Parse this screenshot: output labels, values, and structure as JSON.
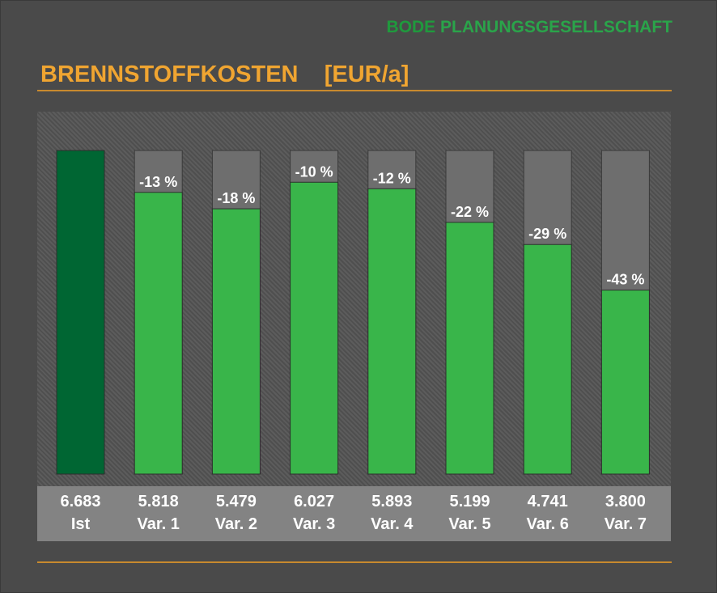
{
  "brand": {
    "part1": "BODE",
    "part2": "PLANUNGSGESELLSCHAFT"
  },
  "title": "BRENNSTOFFKOSTEN    [EUR/a]",
  "colors": {
    "background": "#4a4a4a",
    "baseline_bar": "#006633",
    "variant_bar": "#39b54a",
    "reference_bar": "#6e6e6e",
    "title": "#f0a531",
    "rule": "#c88a2e",
    "label_band": "#838383"
  },
  "chart_data": {
    "type": "bar",
    "title": "BRENNSTOFFKOSTEN    [EUR/a]",
    "categories": [
      "Ist",
      "Var. 1",
      "Var. 2",
      "Var. 3",
      "Var. 4",
      "Var. 5",
      "Var. 6",
      "Var. 7"
    ],
    "value_labels": [
      "6.683",
      "5.818",
      "5.479",
      "6.027",
      "5.893",
      "5.199",
      "4.741",
      "3.800"
    ],
    "values": [
      6683,
      5818,
      5479,
      6027,
      5893,
      5199,
      4741,
      3800
    ],
    "reference_value": 6683,
    "change_labels": [
      "",
      "-13 %",
      "-18 %",
      "-10 %",
      "-12 %",
      "-22 %",
      "-29 %",
      "-43 %"
    ],
    "ylim": [
      0,
      6683
    ],
    "grid": false,
    "legend": "none"
  }
}
